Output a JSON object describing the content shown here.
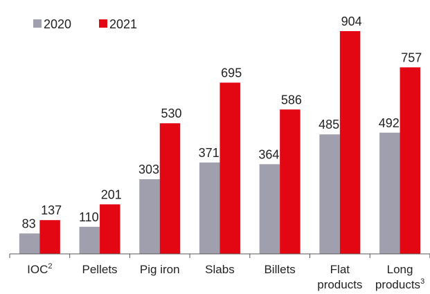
{
  "chart_data": {
    "type": "bar",
    "categories": [
      "IOC",
      "Pellets",
      "Pig iron",
      "Slabs",
      "Billets",
      "Flat products",
      "Long products"
    ],
    "category_superscripts": {
      "0": "2",
      "6": "3"
    },
    "series": [
      {
        "name": "2020",
        "color": "#a09fae",
        "values": [
          83,
          110,
          303,
          371,
          364,
          485,
          492
        ]
      },
      {
        "name": "2021",
        "color": "#e30613",
        "values": [
          137,
          201,
          530,
          695,
          586,
          904,
          757
        ]
      }
    ],
    "legend": "top-left"
  }
}
